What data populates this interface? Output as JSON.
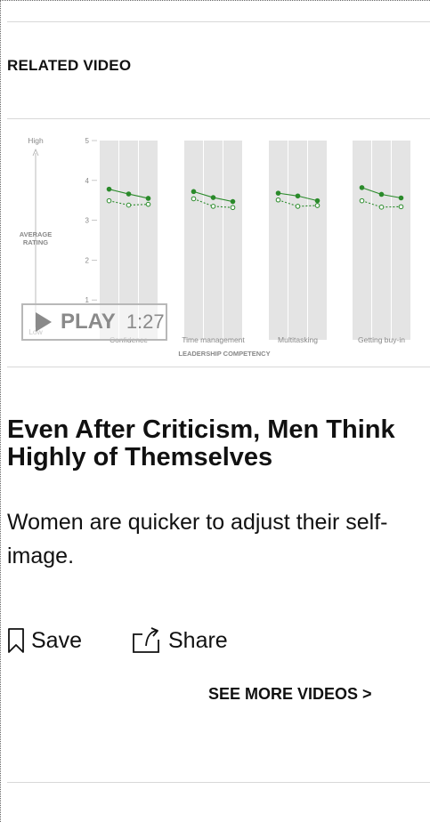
{
  "section": {
    "label": "RELATED VIDEO"
  },
  "video": {
    "play_label": "PLAY",
    "duration": "1:27",
    "chart_data": {
      "type": "line",
      "title": "",
      "ylabel": "AVERAGE RATING",
      "y_high_label": "High",
      "y_low_label": "Low",
      "xlabel": "LEADERSHIP COMPETENCY",
      "ylim": [
        0,
        5
      ],
      "yticks": [
        "1",
        "2",
        "3",
        "4",
        "5"
      ],
      "categories": [
        "Confidence",
        "Time management",
        "Multitasking",
        "Getting buy-in"
      ],
      "colors": {
        "series": "#2a8a2a",
        "bands": "#e4e4e4"
      },
      "series": [
        {
          "name": "",
          "style": "solid-filled",
          "values": [
            [
              3.78,
              3.66,
              3.55
            ],
            [
              3.72,
              3.57,
              3.47
            ],
            [
              3.68,
              3.61,
              3.49
            ],
            [
              3.82,
              3.65,
              3.56
            ]
          ]
        },
        {
          "name": "",
          "style": "dashed-open",
          "values": [
            [
              3.49,
              3.38,
              3.4
            ],
            [
              3.54,
              3.35,
              3.32
            ],
            [
              3.51,
              3.35,
              3.37
            ],
            [
              3.49,
              3.33,
              3.34
            ]
          ]
        }
      ]
    }
  },
  "article": {
    "title": "Even After Criticism, Men Think Highly of Themselves",
    "dek": "Women are quicker to adjust their self-image.",
    "save_label": "Save",
    "share_label": "Share",
    "save_icon": "bookmark-icon",
    "share_icon": "share-icon"
  },
  "see_more": "SEE MORE VIDEOS >"
}
